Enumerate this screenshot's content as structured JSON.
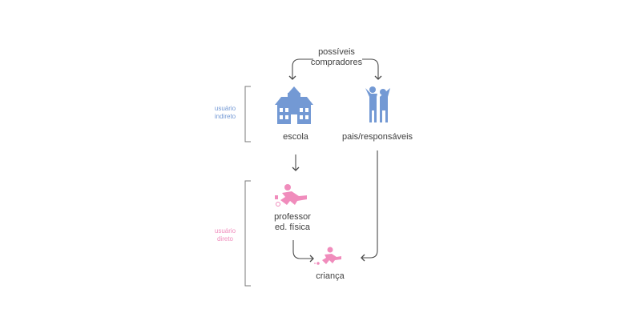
{
  "top_label": {
    "line1": "possíveis",
    "line2": "compradores"
  },
  "nodes": {
    "escola": "escola",
    "pais": "pais/responsáveis",
    "professor_line1": "professor",
    "professor_line2": "ed. física",
    "crianca": "criança"
  },
  "groups": {
    "indireto": {
      "line1": "usuário",
      "line2": "indireto"
    },
    "direto": {
      "line1": "usuário",
      "line2": "direto"
    }
  },
  "icons": {
    "escola": "school-building-icon",
    "pais": "parents-icon",
    "professor": "pe-teacher-kicking-ball-icon",
    "crianca": "child-kicking-ball-icon"
  },
  "colors": {
    "indireto": "#7399d4",
    "direto": "#f08cbc",
    "arrows": "#4a4a4a",
    "text": "#3f3f3f",
    "bracket": "#7a7a7a"
  }
}
